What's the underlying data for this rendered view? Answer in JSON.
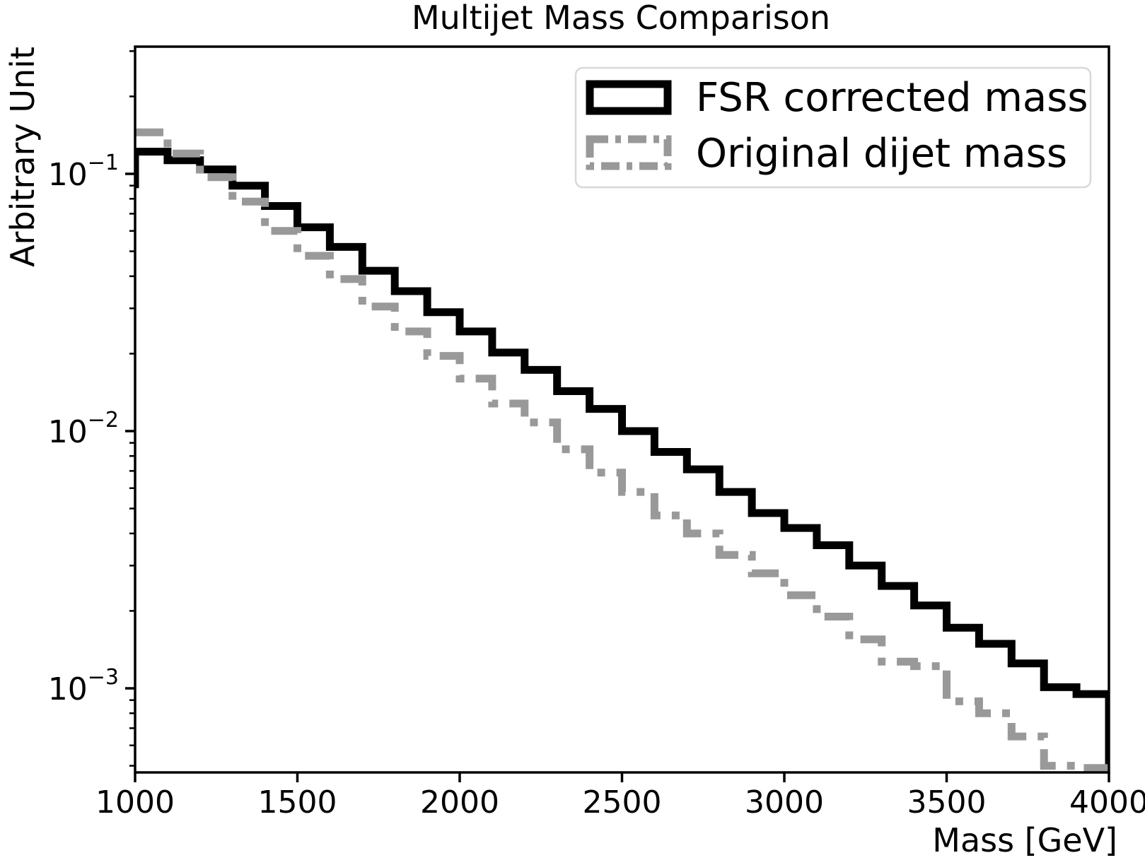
{
  "figure": {
    "title": "Multijet Mass Comparison",
    "xlabel": "Mass [GeV]",
    "ylabel": "Arbitrary Unit"
  },
  "axes": {
    "xlim": [
      1000,
      4000
    ],
    "yscale": "log",
    "xticks": [
      1000,
      1500,
      2000,
      2500,
      3000,
      3500,
      4000
    ],
    "yticks": [
      {
        "mantissa": "10",
        "exponent": "−1",
        "value": 0.1
      },
      {
        "mantissa": "10",
        "exponent": "−2",
        "value": 0.01
      },
      {
        "mantissa": "10",
        "exponent": "−3",
        "value": 0.001
      }
    ],
    "grid": false
  },
  "legend": {
    "position": "upper right",
    "entries": [
      {
        "label": "FSR corrected mass",
        "color": "#000000",
        "linestyle": "solid"
      },
      {
        "label": "Original dijet mass",
        "color": "#999999",
        "linestyle": "dashdot"
      }
    ]
  },
  "chart_data": {
    "type": "step-histogram",
    "title": "Multijet Mass Comparison",
    "xlabel": "Mass [GeV]",
    "ylabel": "Arbitrary Unit",
    "yscale": "log",
    "xlim": [
      1000,
      4000
    ],
    "ylim": [
      0.00047,
      0.31
    ],
    "legend_position": "upper right",
    "grid": false,
    "bin_edges": [
      1000,
      1100,
      1200,
      1300,
      1400,
      1500,
      1600,
      1700,
      1800,
      1900,
      2000,
      2100,
      2200,
      2300,
      2400,
      2500,
      2600,
      2700,
      2800,
      2900,
      3000,
      3100,
      3200,
      3300,
      3400,
      3500,
      3600,
      3700,
      3800,
      3900,
      4000
    ],
    "series": [
      {
        "name": "FSR corrected mass",
        "color": "#000000",
        "linestyle": "solid",
        "left_edge_value": 0.088,
        "values": [
          0.122,
          0.113,
          0.104,
          0.09,
          0.075,
          0.062,
          0.052,
          0.042,
          0.035,
          0.029,
          0.0244,
          0.0202,
          0.0173,
          0.0143,
          0.0122,
          0.01,
          0.0083,
          0.0071,
          0.0058,
          0.0048,
          0.0042,
          0.0036,
          0.003,
          0.0025,
          0.0021,
          0.00172,
          0.00149,
          0.00125,
          0.00101,
          0.00095
        ]
      },
      {
        "name": "Original dijet mass",
        "color": "#999999",
        "linestyle": "dashdot",
        "left_edge_value": null,
        "values": [
          0.145,
          0.12,
          0.097,
          0.078,
          0.06,
          0.048,
          0.039,
          0.0305,
          0.0244,
          0.0196,
          0.016,
          0.0128,
          0.0108,
          0.0085,
          0.0069,
          0.0058,
          0.0047,
          0.004,
          0.0033,
          0.0028,
          0.0023,
          0.0019,
          0.00155,
          0.00127,
          0.00122,
          0.00089,
          0.0008,
          0.00065,
          0.0005,
          0.00049
        ]
      }
    ]
  }
}
